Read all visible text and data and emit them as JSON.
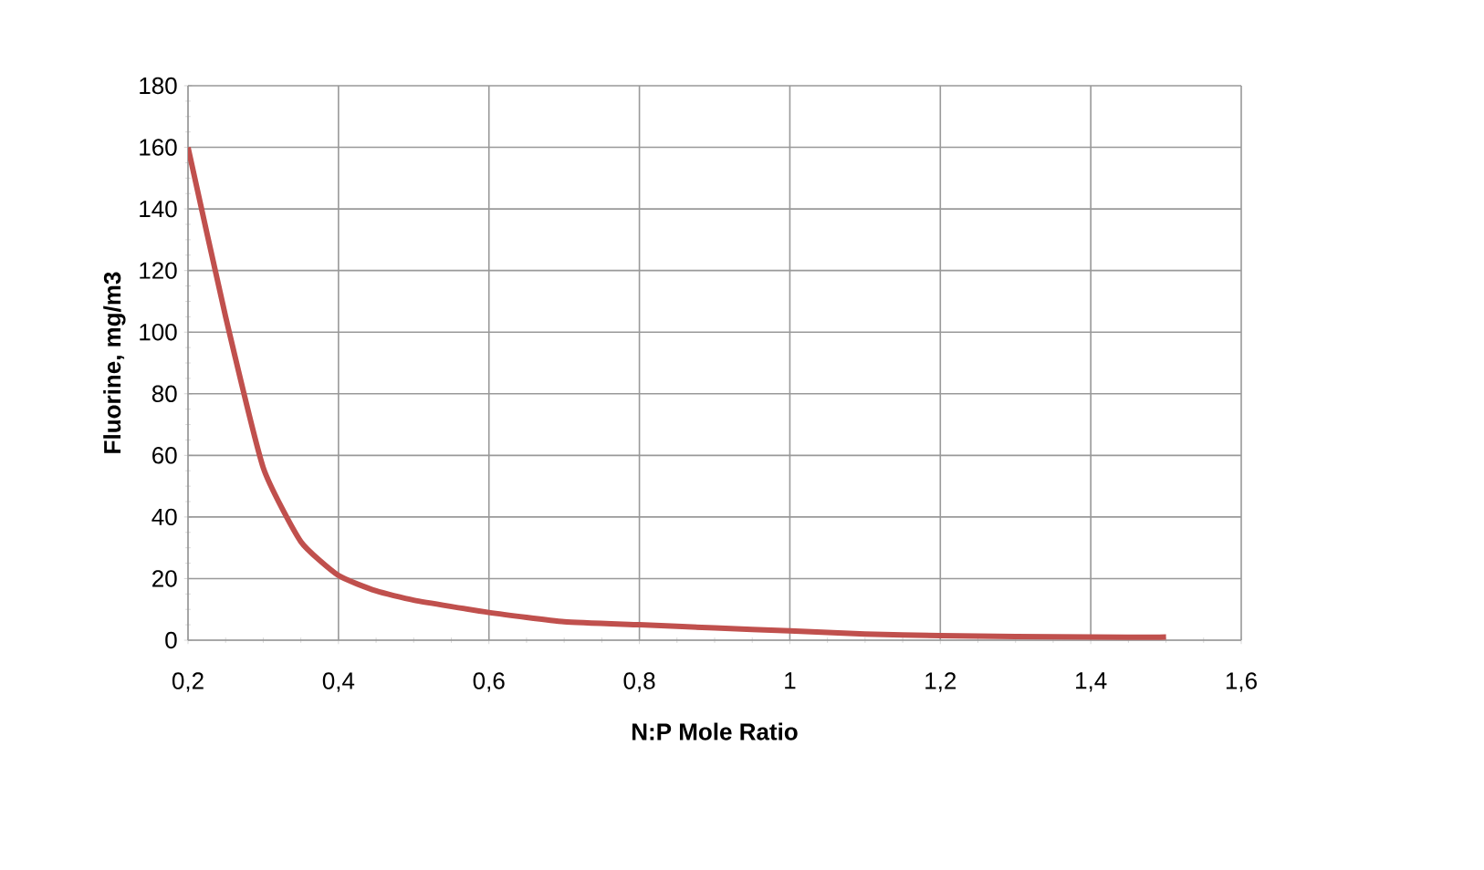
{
  "chart_data": {
    "type": "line",
    "xlabel": "N:P Mole Ratio",
    "ylabel": "Fluorine, mg/m3",
    "grid": true,
    "marker": "none",
    "line_style": "solid",
    "series": [
      {
        "color": "#c0504d",
        "x": [
          0.2,
          0.25,
          0.3,
          0.35,
          0.4,
          0.45,
          0.5,
          0.6,
          0.7,
          0.8,
          0.9,
          1.0,
          1.1,
          1.2,
          1.3,
          1.4,
          1.5
        ],
        "values": [
          160,
          105,
          56,
          32,
          21,
          16,
          13,
          9,
          6,
          5,
          4,
          3,
          2,
          1.5,
          1.2,
          1,
          1
        ]
      }
    ],
    "xlim": [
      0.2,
      1.6
    ],
    "xticks": [
      {
        "value": 0.2,
        "label": "0,2"
      },
      {
        "value": 0.4,
        "label": "0,4"
      },
      {
        "value": 0.6,
        "label": "0,6"
      },
      {
        "value": 0.8,
        "label": "0,8"
      },
      {
        "value": 1,
        "label": "1"
      },
      {
        "value": 1.2,
        "label": "1,2"
      },
      {
        "value": 1.4,
        "label": "1,4"
      },
      {
        "value": 1.6,
        "label": "1,6"
      }
    ],
    "ylim": [
      0,
      180
    ],
    "yticks": [
      0,
      20,
      40,
      60,
      80,
      100,
      120,
      140,
      160,
      180
    ]
  }
}
